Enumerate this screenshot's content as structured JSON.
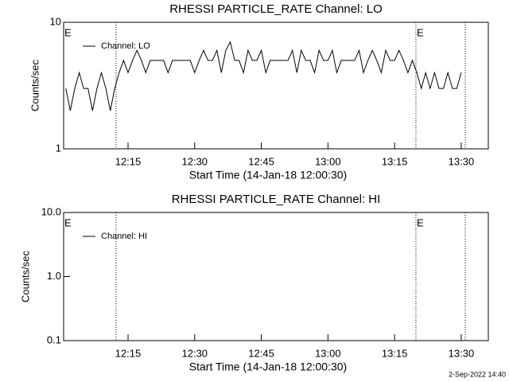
{
  "chart_data": [
    {
      "type": "line",
      "title": "RHESSI PARTICLE_RATE Channel: LO",
      "xlabel": "Start Time (14-Jan-18 12:00:30)",
      "ylabel": "Counts/sec",
      "ylog": true,
      "xlim": [
        0.5,
        96.1
      ],
      "ylim": [
        1,
        10
      ],
      "xticks": [
        {
          "value": 15,
          "label": "12:15"
        },
        {
          "value": 30,
          "label": "12:30"
        },
        {
          "value": 45,
          "label": "12:45"
        },
        {
          "value": 60,
          "label": "13:00"
        },
        {
          "value": 75,
          "label": "13:15"
        },
        {
          "value": 90,
          "label": "13:30"
        }
      ],
      "yticks": [
        1,
        10
      ],
      "markers": [
        12.3,
        79.8,
        90.9
      ],
      "annotations": [
        {
          "text": "E",
          "x": 0.5
        },
        {
          "text": "E",
          "x": 79.8
        }
      ],
      "x": [
        1,
        2,
        3,
        4,
        5,
        6,
        7,
        8,
        9,
        10,
        11,
        12,
        13,
        14,
        15,
        16,
        17,
        18,
        19,
        20,
        21,
        22,
        23,
        24,
        25,
        26,
        27,
        28,
        29,
        30,
        31,
        32,
        33,
        34,
        35,
        36,
        37,
        38,
        39,
        40,
        41,
        42,
        43,
        44,
        45,
        46,
        47,
        48,
        49,
        50,
        51,
        52,
        53,
        54,
        55,
        56,
        57,
        58,
        59,
        60,
        61,
        62,
        63,
        64,
        65,
        66,
        67,
        68,
        69,
        70,
        71,
        72,
        73,
        74,
        75,
        76,
        77,
        78,
        79,
        80,
        81,
        82,
        83,
        84,
        85,
        86,
        87,
        88,
        89,
        90
      ],
      "series": [
        {
          "name": "Channel: LO",
          "color": "#000000",
          "values": [
            3,
            2,
            3,
            4,
            3,
            3,
            2,
            3,
            4,
            3,
            2,
            3,
            4,
            5,
            4,
            5,
            6,
            5,
            4,
            5,
            5,
            5,
            5,
            4,
            5,
            5,
            5,
            5,
            5,
            4,
            5,
            6,
            5,
            5,
            6,
            4,
            6,
            7,
            5,
            5,
            4,
            6,
            5,
            5,
            6,
            4,
            5,
            5,
            5,
            5,
            5,
            6,
            4,
            6,
            5,
            5,
            4,
            6,
            5,
            5,
            6,
            4,
            5,
            5,
            5,
            5,
            6,
            4,
            5,
            6,
            5,
            4,
            6,
            5,
            5,
            6,
            5,
            4,
            5,
            4,
            3,
            4,
            3,
            4,
            3,
            3,
            4,
            3,
            3,
            4
          ]
        }
      ]
    },
    {
      "type": "line",
      "title": "RHESSI PARTICLE_RATE Channel: HI",
      "xlabel": "Start Time (14-Jan-18 12:00:30)",
      "ylabel": "Counts/sec",
      "ylog": true,
      "xlim": [
        0.5,
        96.1
      ],
      "ylim": [
        0.1,
        10
      ],
      "xticks": [
        {
          "value": 15,
          "label": "12:15"
        },
        {
          "value": 30,
          "label": "12:30"
        },
        {
          "value": 45,
          "label": "12:45"
        },
        {
          "value": 60,
          "label": "13:00"
        },
        {
          "value": 75,
          "label": "13:15"
        },
        {
          "value": 90,
          "label": "13:30"
        }
      ],
      "yticks": [
        {
          "value": 0.1,
          "label": "0.1"
        },
        {
          "value": 1,
          "label": "1.0"
        },
        {
          "value": 10,
          "label": "10.0"
        }
      ],
      "markers": [
        12.3,
        79.8,
        90.9
      ],
      "annotations": [
        {
          "text": "E",
          "x": 0.5
        },
        {
          "text": "E",
          "x": 79.8
        }
      ],
      "x": [],
      "series": [
        {
          "name": "Channel: HI",
          "color": "#000000",
          "values": []
        }
      ]
    }
  ],
  "footer": "2-Sep-2022 14:40"
}
